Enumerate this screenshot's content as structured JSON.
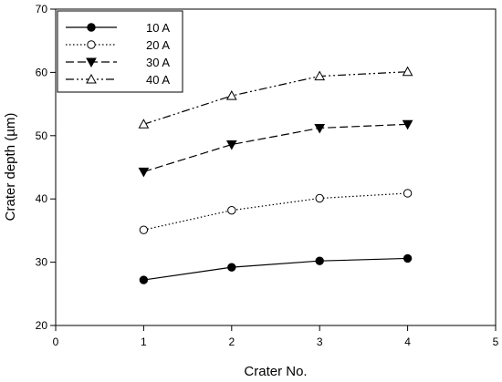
{
  "chart_data": {
    "type": "line",
    "xlabel": "Crater No.",
    "ylabel": "Crater depth (µm)",
    "xlim": [
      0,
      5
    ],
    "ylim": [
      20,
      70
    ],
    "x_ticks": [
      0,
      1,
      2,
      3,
      4,
      5
    ],
    "y_ticks": [
      20,
      30,
      40,
      50,
      60,
      70
    ],
    "grid": false,
    "legend_position": "top-left",
    "x": [
      1,
      2,
      3,
      4
    ],
    "series": [
      {
        "name": "10 A",
        "values": [
          27.2,
          29.2,
          30.2,
          30.6
        ],
        "line_style": "solid",
        "marker": "filled-circle",
        "color": "#000000"
      },
      {
        "name": "20 A",
        "values": [
          35.1,
          38.2,
          40.1,
          40.9
        ],
        "line_style": "dotted",
        "marker": "open-circle",
        "color": "#000000"
      },
      {
        "name": "30 A",
        "values": [
          44.3,
          48.6,
          51.2,
          51.8
        ],
        "line_style": "dashed",
        "marker": "filled-triangle-down",
        "color": "#000000"
      },
      {
        "name": "40 A",
        "values": [
          51.8,
          56.3,
          59.4,
          60.1
        ],
        "line_style": "dash-dot-dot",
        "marker": "open-triangle-up",
        "color": "#000000"
      }
    ]
  }
}
